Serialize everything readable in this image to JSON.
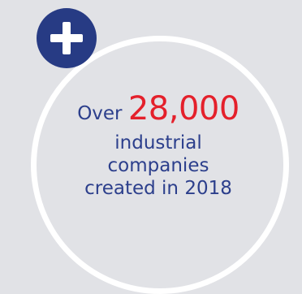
{
  "badge": {
    "icon": "plus-icon",
    "background": "#273b84"
  },
  "stat": {
    "prefix": "Over",
    "number": "28,000",
    "line2": "industrial",
    "line3": "companies",
    "line4": "created in 2018"
  },
  "colors": {
    "background": "#e1e2e6",
    "text": "#2c3f8c",
    "accent": "#e4202b",
    "ring": "#ffffff"
  }
}
